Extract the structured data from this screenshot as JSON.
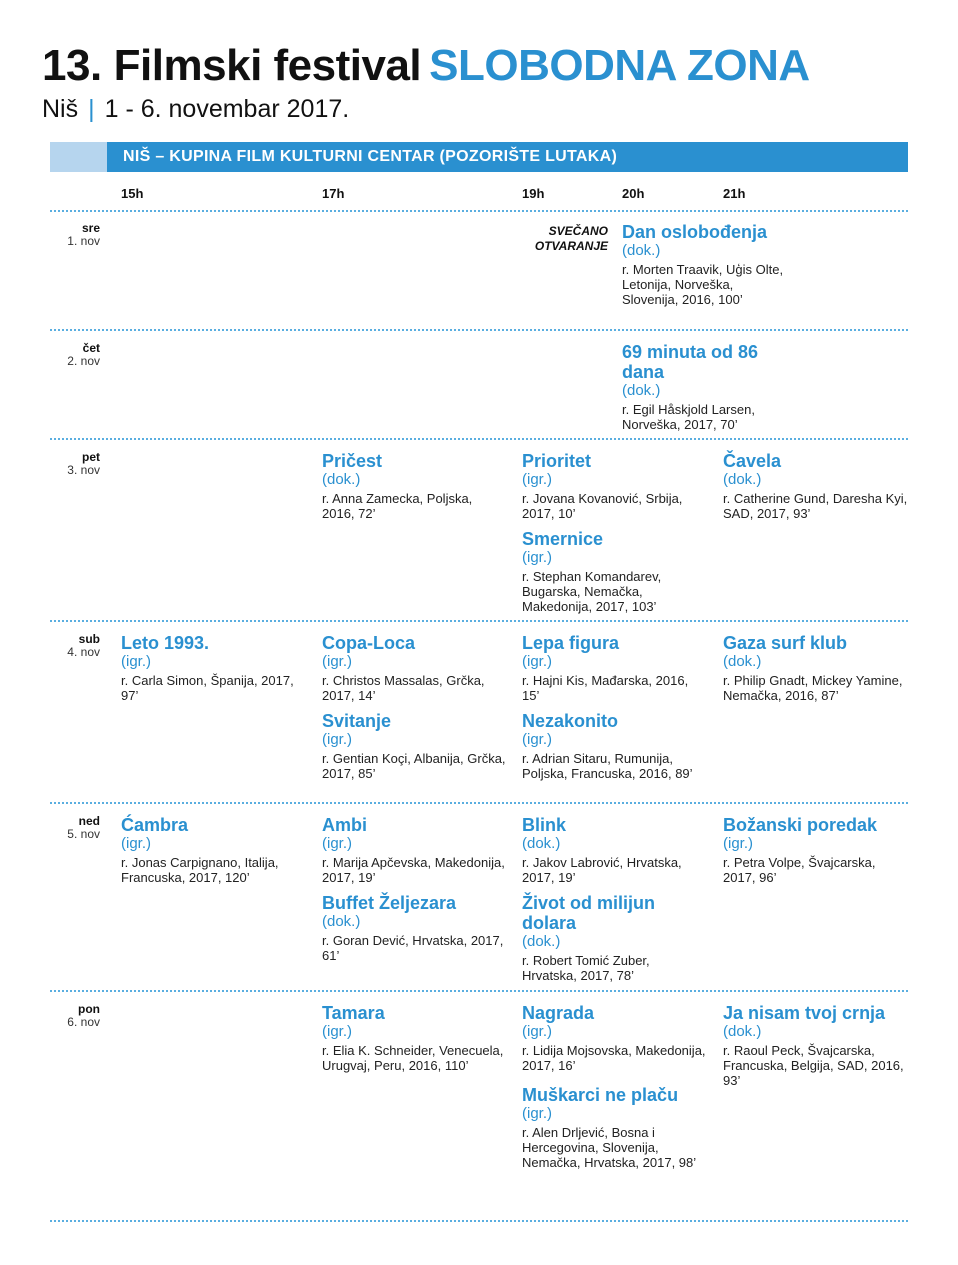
{
  "header": {
    "number": "13.",
    "title": "Filmski festival",
    "accent": "SLOBODNA ZONA",
    "city": "Niš",
    "separator": "|",
    "dates": "1 - 6. novembar 2017."
  },
  "venue": "NIŠ – KUPINA FILM KULTURNI CENTAR (POZORIŠTE LUTAKA)",
  "times": [
    "15h",
    "17h",
    "19h",
    "20h",
    "21h"
  ],
  "days": [
    {
      "weekday": "sre",
      "date": "1. nov"
    },
    {
      "weekday": "čet",
      "date": "2. nov"
    },
    {
      "weekday": "pet",
      "date": "3. nov"
    },
    {
      "weekday": "sub",
      "date": "4. nov"
    },
    {
      "weekday": "ned",
      "date": "5. nov"
    },
    {
      "weekday": "pon",
      "date": "6. nov"
    }
  ],
  "opening": {
    "line1": "SVEČANO",
    "line2": "OTVARANJE"
  },
  "films": [
    {
      "title": "Dan oslobođenja",
      "genre": "(dok.)",
      "info": "r. Morten Traavik, Uģis Olte, Letonija, Norveška, Slovenija, 2016, 100’"
    },
    {
      "title": "69 minuta od 86 dana",
      "genre": "(dok.)",
      "info": "r. Egil Håskjold Larsen, Norveška, 2017, 70’"
    },
    {
      "title": "Pričest",
      "genre": "(dok.)",
      "info": "r. Anna Zamecka, Poljska, 2016, 72’"
    },
    {
      "title": "Prioritet",
      "genre": "(igr.)",
      "info": "r. Jovana Kovanović, Srbija, 2017, 10’"
    },
    {
      "title": "Smernice",
      "genre": "(igr.)",
      "info": "r. Stephan Komandarev, Bugarska, Nemačka, Makedonija, 2017, 103’"
    },
    {
      "title": "Čavela",
      "genre": "(dok.)",
      "info": "r. Catherine Gund, Daresha Kyi, SAD, 2017, 93’"
    },
    {
      "title": "Leto 1993.",
      "genre": "(igr.)",
      "info": "r. Carla Simon, Španija, 2017, 97’"
    },
    {
      "title": "Copa-Loca",
      "genre": "(igr.)",
      "info": "r. Christos Massalas, Grčka, 2017, 14’"
    },
    {
      "title": "Svitanje",
      "genre": "(igr.)",
      "info": "r. Gentian Koçi, Albanija, Grčka, 2017, 85’"
    },
    {
      "title": "Lepa figura",
      "genre": "(igr.)",
      "info": "r. Hajni Kis, Mađarska, 2016, 15’"
    },
    {
      "title": "Nezakonito",
      "genre": "(igr.)",
      "info": "r. Adrian Sitaru, Rumunija, Poljska, Francuska, 2016, 89’"
    },
    {
      "title": "Gaza surf klub",
      "genre": "(dok.)",
      "info": "r. Philip Gnadt, Mickey Yamine, Nemačka, 2016, 87’"
    },
    {
      "title": "Ćambra",
      "genre": "(igr.)",
      "info": "r. Jonas Carpignano, Italija, Francuska, 2017, 120’"
    },
    {
      "title": "Ambi",
      "genre": "(igr.)",
      "info": "r. Marija Apčevska, Makedonija, 2017, 19’"
    },
    {
      "title": "Buffet Željezara",
      "genre": "(dok.)",
      "info": "r. Goran Dević, Hrvatska, 2017, 61’"
    },
    {
      "title": "Blink",
      "genre": "(dok.)",
      "info": "r. Jakov Labrović, Hrvatska, 2017, 19’"
    },
    {
      "title": "Život od milijun dolara",
      "genre": "(dok.)",
      "info": "r. Robert Tomić Zuber, Hrvatska, 2017, 78’"
    },
    {
      "title": "Božanski poredak",
      "genre": "(igr.)",
      "info": "r. Petra Volpe, Švajcarska, 2017, 96’"
    },
    {
      "title": "Tamara",
      "genre": "(igr.)",
      "info": "r. Elia K. Schneider, Venecuela, Urugvaj, Peru, 2016, 110’"
    },
    {
      "title": "Nagrada",
      "genre": "(igr.)",
      "info": "r. Lidija Mojsovska, Makedonija, 2017, 16’"
    },
    {
      "title": "Muškarci ne plaču",
      "genre": "(igr.)",
      "info": "r. Alen Drljević, Bosna i Hercegovina, Slovenija, Nemačka, Hrvatska, 2017, 98’"
    },
    {
      "title": "Ja nisam tvoj crnja",
      "genre": "(dok.)",
      "info": "r. Raoul Peck, Švajcarska, Francuska, Belgija, SAD, 2016, 93’"
    }
  ],
  "colors": {
    "accent": "#2a90d0",
    "accent_light": "#b6d5ee",
    "text": "#1a1a1a"
  }
}
